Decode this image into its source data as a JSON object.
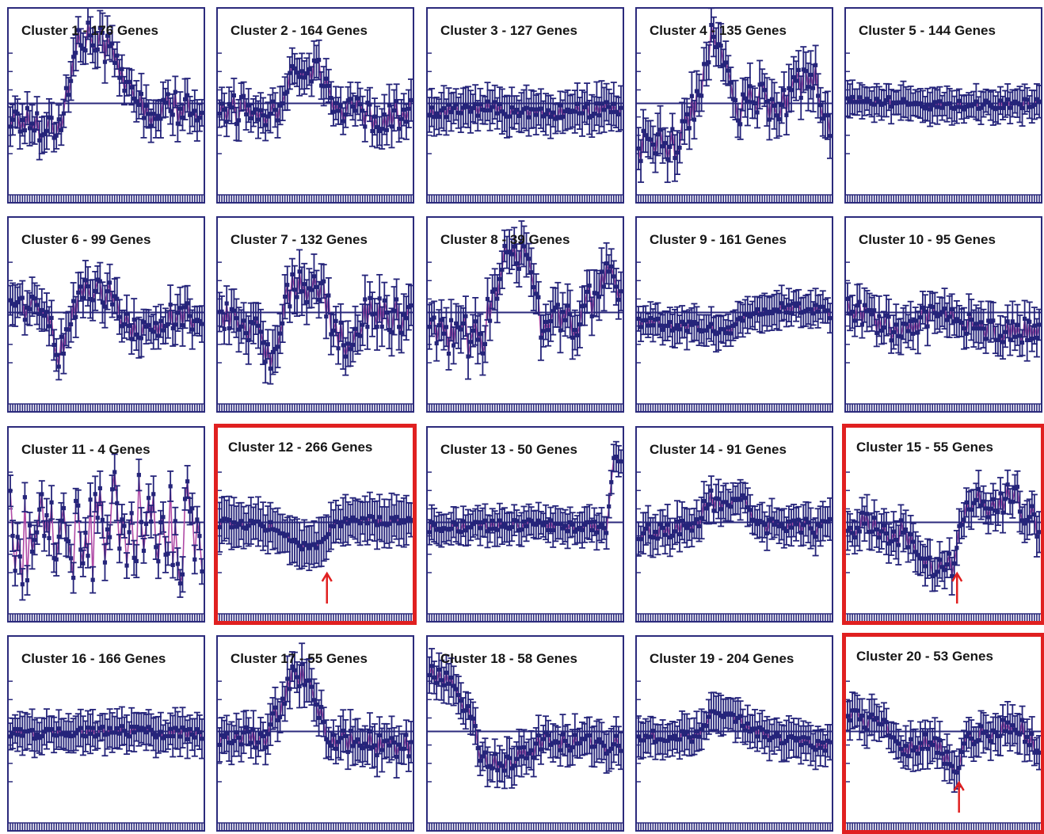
{
  "colors": {
    "frame": "#2b2a7c",
    "errorbar": "#25247a",
    "marker": "#25247a",
    "line": "#b04aa6",
    "highlight": "#e02020",
    "arrow": "#e02020"
  },
  "chart_data": [
    {
      "type": "line",
      "title": "Cluster 1 - 176 Genes",
      "highlighted": false,
      "arrow": false,
      "profile": [
        [
          0,
          -0.3
        ],
        [
          0.25,
          -0.5
        ],
        [
          0.3,
          0.2
        ],
        [
          0.36,
          1.4
        ],
        [
          0.55,
          1.1
        ],
        [
          0.62,
          0.1
        ],
        [
          0.72,
          -0.1
        ],
        [
          0.77,
          -0.6
        ],
        [
          0.82,
          0.3
        ],
        [
          0.88,
          -0.2
        ],
        [
          1,
          -0.1
        ]
      ],
      "noise": 0.35,
      "error": 0.35
    },
    {
      "title": "Cluster 2 - 164 Genes",
      "highlighted": false,
      "arrow": false,
      "profile": [
        [
          0,
          -0.1
        ],
        [
          0.3,
          -0.2
        ],
        [
          0.36,
          0.6
        ],
        [
          0.52,
          0.7
        ],
        [
          0.58,
          0.0
        ],
        [
          0.8,
          -0.3
        ],
        [
          1,
          -0.2
        ]
      ],
      "noise": 0.3,
      "error": 0.35
    },
    {
      "title": "Cluster 3 - 127 Genes",
      "highlighted": false,
      "arrow": false,
      "profile": [
        [
          0,
          -0.2
        ],
        [
          0.3,
          -0.1
        ],
        [
          0.6,
          -0.2
        ],
        [
          1,
          -0.1
        ]
      ],
      "noise": 0.15,
      "error": 0.38
    },
    {
      "title": "Cluster 4 - 135 Genes",
      "highlighted": false,
      "arrow": false,
      "profile": [
        [
          0,
          -0.9
        ],
        [
          0.2,
          -0.8
        ],
        [
          0.3,
          0.0
        ],
        [
          0.38,
          1.3
        ],
        [
          0.45,
          0.8
        ],
        [
          0.52,
          -0.3
        ],
        [
          0.6,
          0.2
        ],
        [
          0.72,
          -0.1
        ],
        [
          0.85,
          0.4
        ],
        [
          0.92,
          0.5
        ],
        [
          1,
          -0.4
        ]
      ],
      "noise": 0.35,
      "error": 0.4
    },
    {
      "title": "Cluster 5 - 144 Genes",
      "highlighted": false,
      "arrow": false,
      "profile": [
        [
          0,
          0.1
        ],
        [
          0.5,
          -0.05
        ],
        [
          1,
          0.0
        ]
      ],
      "noise": 0.1,
      "error": 0.3
    },
    {
      "title": "Cluster 6 - 99 Genes",
      "highlighted": false,
      "arrow": false,
      "profile": [
        [
          0,
          0.2
        ],
        [
          0.2,
          0.0
        ],
        [
          0.25,
          -0.9
        ],
        [
          0.32,
          -0.1
        ],
        [
          0.38,
          0.5
        ],
        [
          0.55,
          0.3
        ],
        [
          0.62,
          -0.4
        ],
        [
          0.72,
          -0.3
        ],
        [
          0.85,
          -0.1
        ],
        [
          1,
          -0.1
        ]
      ],
      "noise": 0.3,
      "error": 0.35
    },
    {
      "title": "Cluster 7 - 132 Genes",
      "highlighted": false,
      "arrow": false,
      "profile": [
        [
          0,
          -0.1
        ],
        [
          0.2,
          -0.3
        ],
        [
          0.27,
          -1.0
        ],
        [
          0.33,
          -0.1
        ],
        [
          0.38,
          0.6
        ],
        [
          0.55,
          0.4
        ],
        [
          0.58,
          -0.2
        ],
        [
          0.67,
          -0.7
        ],
        [
          0.75,
          0.0
        ],
        [
          1,
          -0.1
        ]
      ],
      "noise": 0.35,
      "error": 0.4
    },
    {
      "title": "Cluster 8 - 39 Genes",
      "highlighted": false,
      "arrow": false,
      "profile": [
        [
          0,
          -0.5
        ],
        [
          0.28,
          -0.5
        ],
        [
          0.33,
          0.2
        ],
        [
          0.38,
          1.0
        ],
        [
          0.46,
          1.3
        ],
        [
          0.54,
          1.0
        ],
        [
          0.58,
          -0.3
        ],
        [
          0.8,
          -0.1
        ],
        [
          0.9,
          0.6
        ],
        [
          1,
          0.5
        ]
      ],
      "noise": 0.45,
      "error": 0.4
    },
    {
      "title": "Cluster 9 - 161 Genes",
      "highlighted": false,
      "arrow": false,
      "profile": [
        [
          0,
          -0.2
        ],
        [
          0.3,
          -0.3
        ],
        [
          0.45,
          -0.4
        ],
        [
          0.6,
          0.0
        ],
        [
          0.8,
          0.1
        ],
        [
          1,
          0.0
        ]
      ],
      "noise": 0.12,
      "error": 0.32
    },
    {
      "title": "Cluster 10 - 95 Genes",
      "highlighted": false,
      "arrow": false,
      "profile": [
        [
          0,
          0.1
        ],
        [
          0.25,
          -0.4
        ],
        [
          0.5,
          0.1
        ],
        [
          0.6,
          -0.2
        ],
        [
          0.75,
          -0.4
        ],
        [
          0.9,
          -0.4
        ],
        [
          1,
          -0.3
        ]
      ],
      "noise": 0.25,
      "error": 0.35
    },
    {
      "title": "Cluster 11 - 4 Genes",
      "highlighted": false,
      "arrow": false,
      "profile": [
        [
          0,
          -0.3
        ],
        [
          0.3,
          -0.2
        ],
        [
          0.6,
          0.0
        ],
        [
          1,
          -0.3
        ]
      ],
      "noise": 1.1,
      "error": 0.3
    },
    {
      "title": "Cluster 12 - 266 Genes",
      "highlighted": true,
      "arrow": true,
      "arrow_pos": 0.56,
      "profile": [
        [
          0,
          0.0
        ],
        [
          0.3,
          -0.1
        ],
        [
          0.38,
          -0.45
        ],
        [
          0.5,
          -0.55
        ],
        [
          0.58,
          -0.1
        ],
        [
          0.7,
          0.05
        ],
        [
          1,
          0.0
        ]
      ],
      "noise": 0.1,
      "error": 0.42
    },
    {
      "title": "Cluster 13 - 50 Genes",
      "highlighted": false,
      "arrow": false,
      "profile": [
        [
          0,
          -0.1
        ],
        [
          0.5,
          -0.05
        ],
        [
          0.93,
          -0.1
        ],
        [
          0.96,
          1.3
        ],
        [
          1,
          1.3
        ]
      ],
      "noise": 0.12,
      "error": 0.3
    },
    {
      "title": "Cluster 14 - 91 Genes",
      "highlighted": false,
      "arrow": false,
      "profile": [
        [
          0,
          -0.2
        ],
        [
          0.3,
          -0.1
        ],
        [
          0.37,
          0.5
        ],
        [
          0.45,
          0.2
        ],
        [
          0.52,
          0.6
        ],
        [
          0.6,
          0.0
        ],
        [
          0.8,
          -0.1
        ],
        [
          1,
          -0.1
        ]
      ],
      "noise": 0.2,
      "error": 0.35
    },
    {
      "title": "Cluster 15 - 55 Genes",
      "highlighted": true,
      "arrow": true,
      "arrow_pos": 0.57,
      "profile": [
        [
          0,
          0.0
        ],
        [
          0.3,
          -0.2
        ],
        [
          0.38,
          -0.8
        ],
        [
          0.55,
          -0.9
        ],
        [
          0.6,
          0.0
        ],
        [
          0.65,
          0.6
        ],
        [
          0.75,
          0.3
        ],
        [
          0.85,
          0.6
        ],
        [
          0.92,
          0.3
        ],
        [
          1,
          -0.2
        ]
      ],
      "noise": 0.3,
      "error": 0.35
    },
    {
      "title": "Cluster 16 - 166 Genes",
      "highlighted": false,
      "arrow": false,
      "profile": [
        [
          0,
          -0.05
        ],
        [
          0.5,
          0.0
        ],
        [
          1,
          -0.05
        ]
      ],
      "noise": 0.12,
      "error": 0.35
    },
    {
      "title": "Cluster 17 - 55 Genes",
      "highlighted": false,
      "arrow": false,
      "profile": [
        [
          0,
          -0.2
        ],
        [
          0.25,
          -0.1
        ],
        [
          0.32,
          0.5
        ],
        [
          0.38,
          1.2
        ],
        [
          0.48,
          1.1
        ],
        [
          0.55,
          0.0
        ],
        [
          0.62,
          -0.2
        ],
        [
          1,
          -0.3
        ]
      ],
      "noise": 0.25,
      "error": 0.38
    },
    {
      "title": "Cluster 18 - 58 Genes",
      "highlighted": false,
      "arrow": false,
      "profile": [
        [
          0,
          1.2
        ],
        [
          0.12,
          1.0
        ],
        [
          0.22,
          0.3
        ],
        [
          0.27,
          -0.5
        ],
        [
          0.4,
          -0.7
        ],
        [
          0.6,
          -0.2
        ],
        [
          0.8,
          -0.2
        ],
        [
          1,
          -0.3
        ]
      ],
      "noise": 0.2,
      "error": 0.35
    },
    {
      "title": "Cluster 19 - 204 Genes",
      "highlighted": false,
      "arrow": false,
      "profile": [
        [
          0,
          -0.1
        ],
        [
          0.3,
          -0.1
        ],
        [
          0.4,
          0.4
        ],
        [
          0.5,
          0.3
        ],
        [
          0.6,
          0.0
        ],
        [
          0.8,
          -0.2
        ],
        [
          1,
          -0.3
        ]
      ],
      "noise": 0.12,
      "error": 0.35
    },
    {
      "title": "Cluster 20 - 53 Genes",
      "highlighted": true,
      "arrow": true,
      "arrow_pos": 0.58,
      "profile": [
        [
          0,
          0.3
        ],
        [
          0.22,
          0.1
        ],
        [
          0.27,
          -0.4
        ],
        [
          0.45,
          -0.2
        ],
        [
          0.52,
          -0.6
        ],
        [
          0.57,
          -0.9
        ],
        [
          0.62,
          -0.1
        ],
        [
          0.75,
          0.0
        ],
        [
          0.9,
          0.1
        ],
        [
          1,
          -0.4
        ]
      ],
      "noise": 0.2,
      "error": 0.35
    }
  ]
}
